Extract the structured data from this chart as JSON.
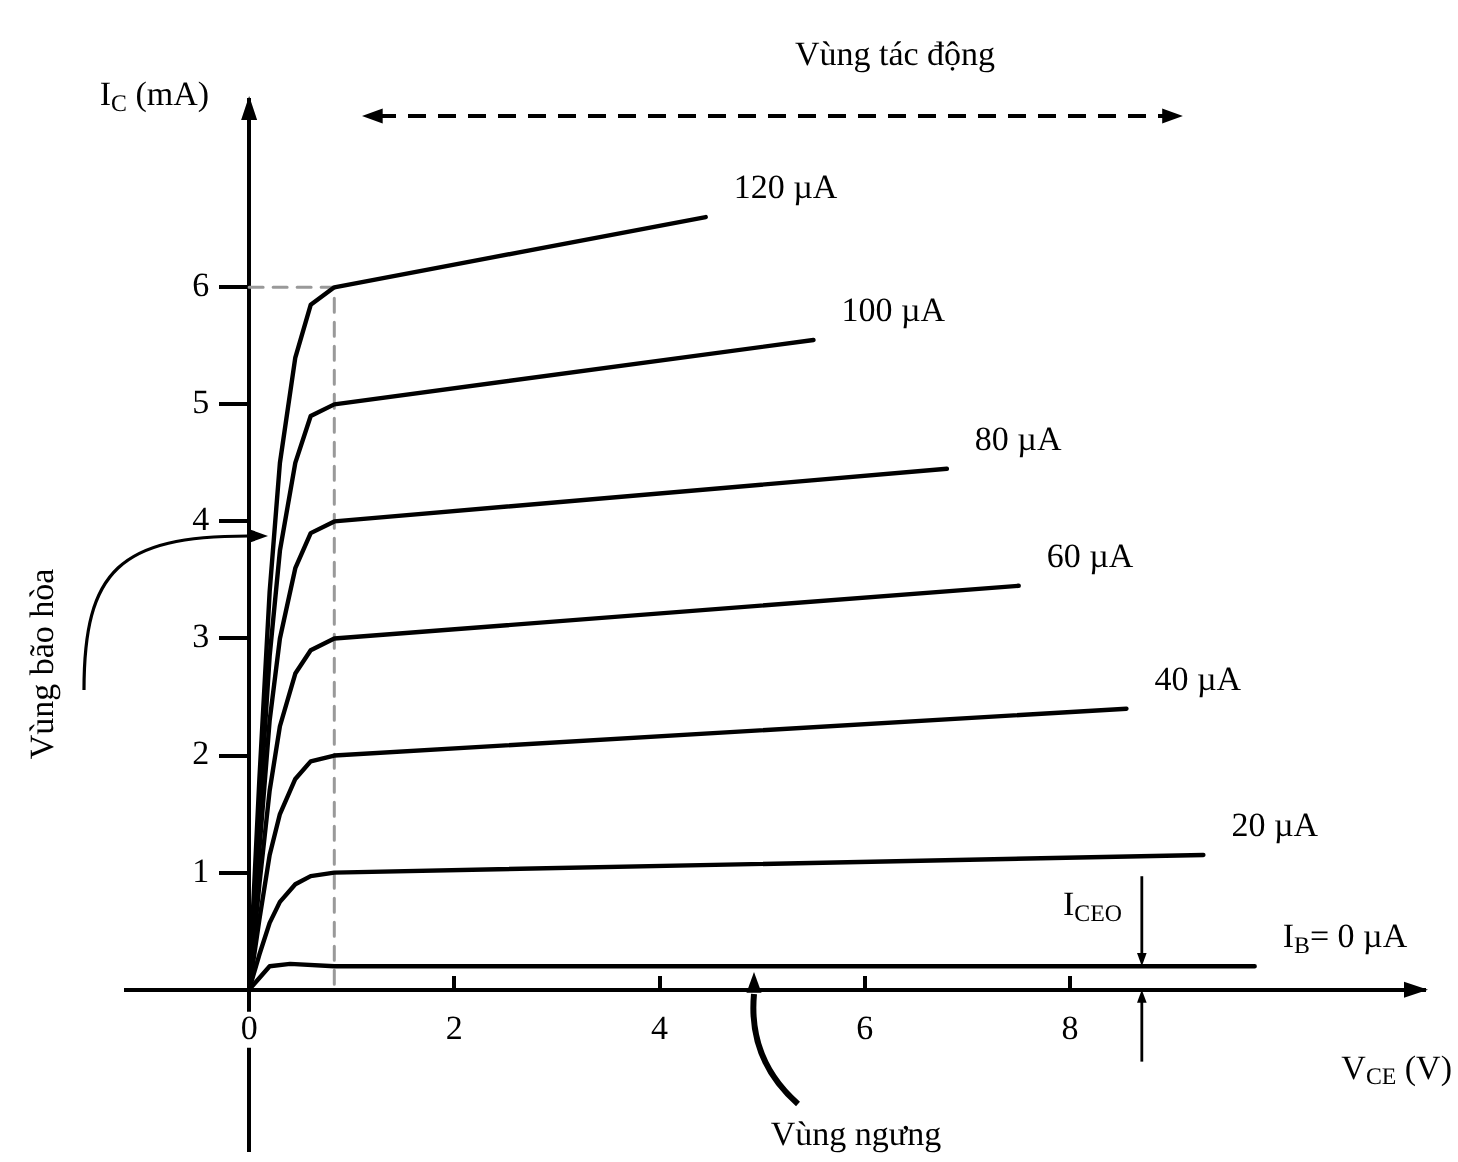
{
  "chart_data": {
    "type": "line",
    "xlabel": "V$_{CE}$ (V)",
    "ylabel": "I$_{C}$ (mA)",
    "xlim": [
      -1.2,
      11.45
    ],
    "ylim": [
      -1.37,
      7.6
    ],
    "xticks": [
      0,
      2,
      4,
      6,
      8
    ],
    "yticks": [
      1,
      2,
      3,
      4,
      5,
      6
    ],
    "grid": false,
    "legend": false,
    "marker": "none",
    "line_style": "solid",
    "series": [
      {
        "name": "120 µA",
        "color": "#000000",
        "x": [
          0,
          0.1,
          0.2,
          0.3,
          0.45,
          0.6,
          0.83,
          4.45
        ],
        "values": [
          0,
          1.8,
          3.4,
          4.5,
          5.4,
          5.85,
          6,
          6.6
        ]
      },
      {
        "name": "100 µA",
        "color": "#000000",
        "x": [
          0,
          0.1,
          0.2,
          0.3,
          0.45,
          0.6,
          0.83,
          5.5
        ],
        "values": [
          0,
          1.5,
          2.85,
          3.75,
          4.5,
          4.9,
          5,
          5.55
        ]
      },
      {
        "name": "80 µA",
        "color": "#000000",
        "x": [
          0,
          0.1,
          0.2,
          0.3,
          0.45,
          0.6,
          0.83,
          6.8
        ],
        "values": [
          0,
          1.2,
          2.3,
          3,
          3.6,
          3.9,
          4,
          4.45
        ]
      },
      {
        "name": "60 µA",
        "color": "#000000",
        "x": [
          0,
          0.1,
          0.2,
          0.3,
          0.45,
          0.6,
          0.83,
          7.5
        ],
        "values": [
          0,
          0.9,
          1.7,
          2.25,
          2.7,
          2.9,
          3,
          3.45
        ]
      },
      {
        "name": "40 µA",
        "color": "#000000",
        "x": [
          0,
          0.1,
          0.2,
          0.3,
          0.45,
          0.6,
          0.83,
          8.55
        ],
        "values": [
          0,
          0.6,
          1.15,
          1.5,
          1.8,
          1.95,
          2,
          2.4
        ]
      },
      {
        "name": "20 µA",
        "color": "#000000",
        "x": [
          0,
          0.1,
          0.2,
          0.3,
          0.45,
          0.6,
          0.83,
          9.3
        ],
        "values": [
          0,
          0.3,
          0.57,
          0.75,
          0.9,
          0.97,
          1,
          1.15
        ]
      },
      {
        "name": "I$_{B}$= 0 µA",
        "color": "#000000",
        "x": [
          0,
          0.2,
          0.4,
          0.83,
          9.8
        ],
        "values": [
          0,
          0.2,
          0.22,
          0.2,
          0.2
        ]
      },
      {
        "color": "#999999",
        "line_style": "dashed",
        "x": [
          0,
          0.83,
          0.83
        ],
        "values": [
          6,
          6,
          0
        ]
      }
    ],
    "annotations": [
      "Vùng tác động",
      "Vùng bão hòa",
      "Vùng ngưng",
      {
        "text": "I$_{CEO}$",
        "x": 8.7,
        "y": 0.2
      }
    ]
  }
}
